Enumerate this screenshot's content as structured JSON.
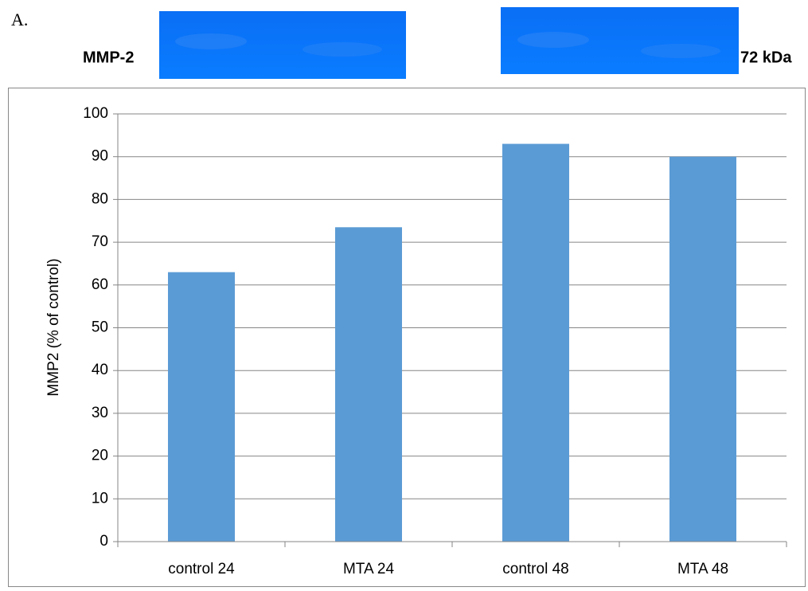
{
  "panel_label": "A.",
  "gel_label": "MMP-2",
  "size_label": "72 kDa",
  "chart_data": {
    "type": "bar",
    "y_label": "MMP2 (% of control)",
    "categories": [
      "control 24",
      "MTA 24",
      "control 48",
      "MTA 48"
    ],
    "values": [
      63,
      73.5,
      93,
      90
    ],
    "color": "#5b9bd5",
    "ylim": [
      0,
      100
    ],
    "yticks": [
      0,
      10,
      20,
      30,
      40,
      50,
      60,
      70,
      80,
      90,
      100
    ],
    "grid": true
  }
}
